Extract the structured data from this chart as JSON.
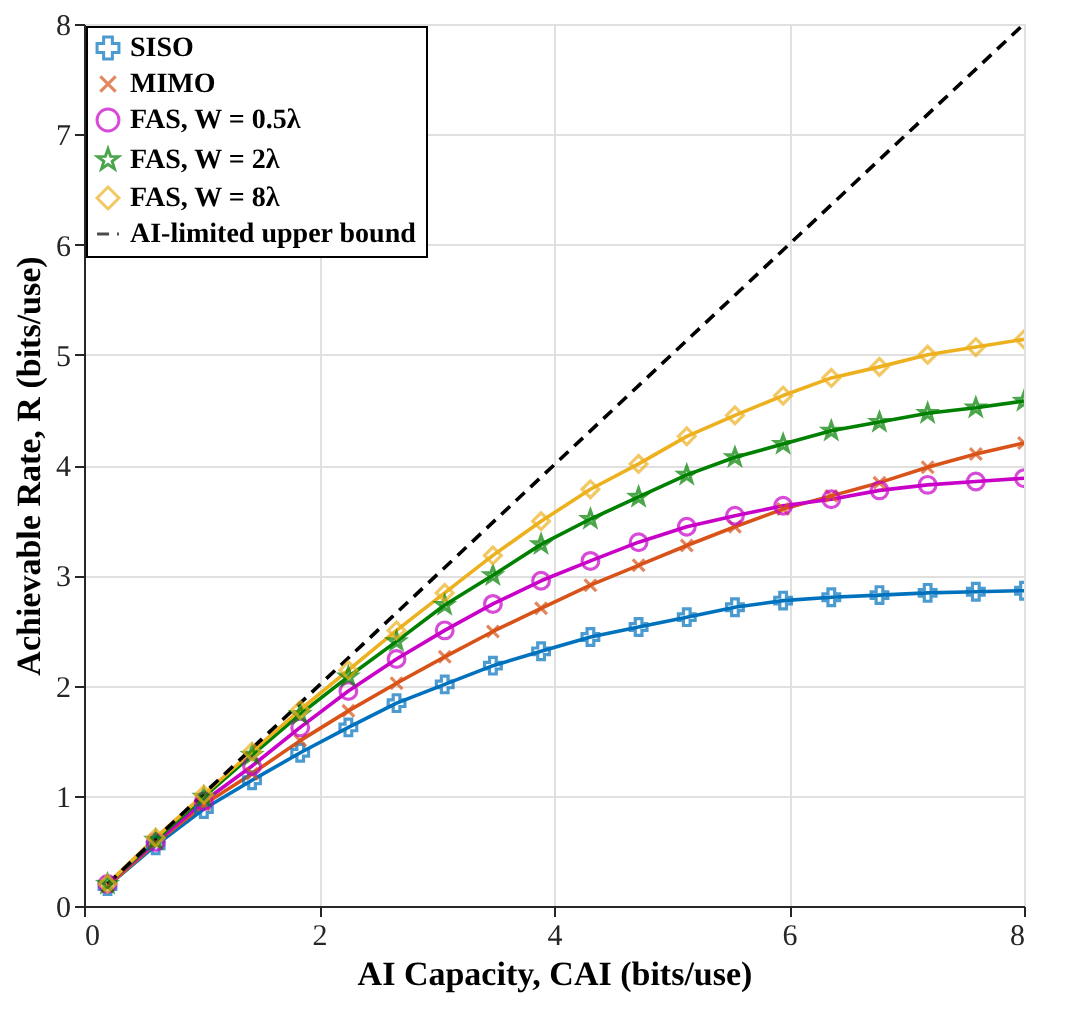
{
  "chart_data": {
    "type": "line",
    "x": [
      0.2,
      0.61,
      1.02,
      1.43,
      1.84,
      2.25,
      2.66,
      3.07,
      3.48,
      3.89,
      4.31,
      4.72,
      5.13,
      5.54,
      5.95,
      6.36,
      6.77,
      7.18,
      7.59,
      8.0
    ],
    "xlabel": "AI Capacity, CAI (bits/use)",
    "ylabel": "Achievable Rate, R (bits/use)",
    "xlim": [
      0,
      8
    ],
    "ylim": [
      0,
      8
    ],
    "xticks": [
      0,
      2,
      4,
      6,
      8
    ],
    "yticks": [
      0,
      1,
      2,
      3,
      4,
      5,
      6,
      7,
      8
    ],
    "grid": true,
    "legend": "top left",
    "line_style": "solid",
    "series": [
      {
        "name": "SISO",
        "color": "#0072bd",
        "marker": "plus",
        "values": [
          0.18,
          0.55,
          0.88,
          1.14,
          1.39,
          1.62,
          1.84,
          2.01,
          2.18,
          2.31,
          2.44,
          2.53,
          2.62,
          2.71,
          2.77,
          2.8,
          2.82,
          2.84,
          2.85,
          2.86
        ]
      },
      {
        "name": "MIMO",
        "color": "#d95319",
        "marker": "cross",
        "values": [
          0.18,
          0.57,
          0.92,
          1.2,
          1.5,
          1.77,
          2.02,
          2.26,
          2.49,
          2.7,
          2.91,
          3.09,
          3.27,
          3.44,
          3.6,
          3.72,
          3.84,
          3.98,
          4.1,
          4.2
        ]
      },
      {
        "name": "FAS, W = 0.5λ",
        "color": "#c800c8",
        "marker": "circle",
        "values": [
          0.2,
          0.58,
          0.95,
          1.27,
          1.62,
          1.95,
          2.24,
          2.5,
          2.74,
          2.95,
          3.13,
          3.3,
          3.44,
          3.54,
          3.63,
          3.69,
          3.77,
          3.82,
          3.85,
          3.88
        ]
      },
      {
        "name": "FAS, W = 2λ",
        "color": "#008000",
        "marker": "star",
        "values": [
          0.2,
          0.6,
          0.99,
          1.37,
          1.74,
          2.08,
          2.4,
          2.73,
          3.0,
          3.28,
          3.51,
          3.71,
          3.91,
          4.07,
          4.19,
          4.31,
          4.39,
          4.47,
          4.52,
          4.58
        ]
      },
      {
        "name": "FAS, W = 8λ",
        "color": "#edb120",
        "marker": "diamond",
        "values": [
          0.2,
          0.62,
          1.01,
          1.4,
          1.78,
          2.14,
          2.5,
          2.84,
          3.18,
          3.49,
          3.78,
          4.01,
          4.26,
          4.45,
          4.63,
          4.79,
          4.89,
          5.0,
          5.07,
          5.14
        ]
      },
      {
        "name": "AI-limited upper bound",
        "color": "#000000",
        "marker": "none",
        "line_style": "dashed",
        "x": [
          0.2,
          8.0
        ],
        "values": [
          0.2,
          8.0
        ]
      }
    ]
  }
}
